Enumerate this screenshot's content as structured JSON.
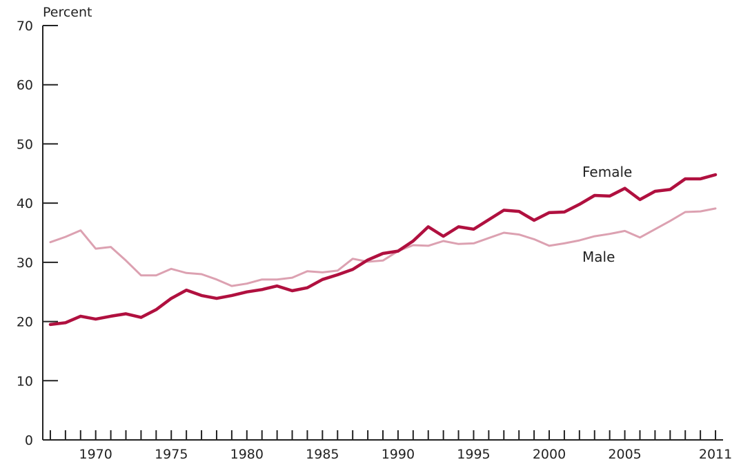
{
  "chart_data": {
    "type": "line",
    "title": "",
    "xlabel": "",
    "ylabel": "Percent",
    "ylim": [
      0,
      70
    ],
    "xlim": [
      1967,
      2011
    ],
    "grid": false,
    "y_ticks": [
      0,
      10,
      20,
      30,
      40,
      50,
      60,
      70
    ],
    "x_tick_labels": [
      "1970",
      "1975",
      "1980",
      "1985",
      "1990",
      "1995",
      "2000",
      "2005",
      "2011"
    ],
    "x": [
      1967,
      1968,
      1969,
      1970,
      1971,
      1972,
      1973,
      1974,
      1975,
      1976,
      1977,
      1978,
      1979,
      1980,
      1981,
      1982,
      1983,
      1984,
      1985,
      1986,
      1987,
      1988,
      1989,
      1990,
      1991,
      1992,
      1993,
      1994,
      1995,
      1996,
      1997,
      1998,
      1999,
      2000,
      2001,
      2002,
      2003,
      2004,
      2005,
      2006,
      2007,
      2008,
      2009,
      2010,
      2011
    ],
    "series": [
      {
        "name": "Female",
        "color": "#b0103f",
        "values": [
          19.5,
          19.8,
          20.9,
          20.4,
          20.9,
          21.3,
          20.7,
          22.0,
          23.9,
          25.3,
          24.4,
          23.9,
          24.4,
          25.0,
          25.4,
          26.0,
          25.2,
          25.7,
          27.1,
          27.9,
          28.8,
          30.4,
          31.5,
          31.9,
          33.6,
          36.0,
          34.4,
          36.0,
          35.6,
          37.2,
          38.8,
          38.6,
          37.1,
          38.4,
          38.5,
          39.8,
          41.3,
          41.2,
          42.5,
          40.6,
          42.0,
          42.3,
          44.1,
          44.1,
          44.8
        ]
      },
      {
        "name": "Male",
        "color": "#dca1b1",
        "values": [
          33.4,
          34.3,
          35.4,
          32.3,
          32.6,
          30.3,
          27.8,
          27.8,
          28.9,
          28.2,
          28.0,
          27.1,
          26.0,
          26.4,
          27.1,
          27.1,
          27.4,
          28.5,
          28.3,
          28.6,
          30.6,
          30.1,
          30.3,
          31.9,
          32.9,
          32.8,
          33.6,
          33.1,
          33.2,
          34.1,
          35.0,
          34.7,
          33.9,
          32.8,
          33.2,
          33.7,
          34.4,
          34.8,
          35.3,
          34.2,
          35.6,
          37.0,
          38.5,
          38.6,
          39.1
        ]
      }
    ]
  }
}
